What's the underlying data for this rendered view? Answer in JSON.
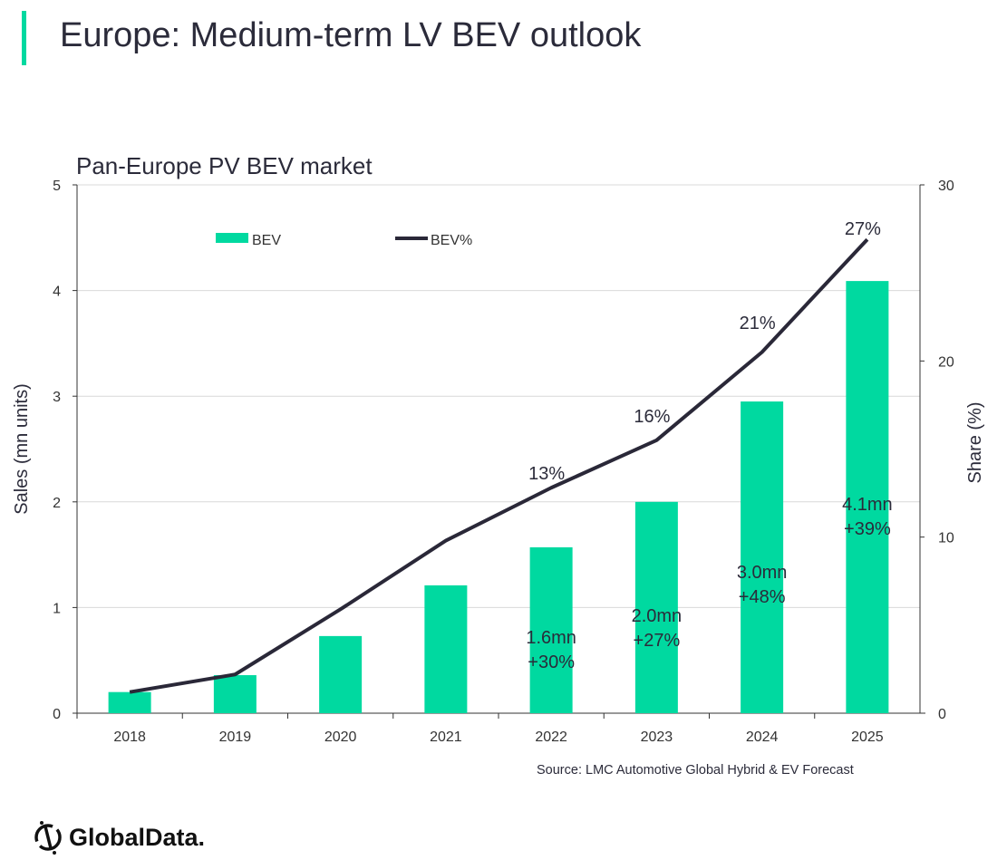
{
  "title": "Europe: Medium-term LV BEV outlook",
  "source": "Source: LMC Automotive Global Hybrid & EV Forecast",
  "logo": "GlobalData.",
  "colors": {
    "bar": "#00d9a0",
    "line": "#2a2838",
    "accent": "#00d9a0"
  },
  "chart_data": {
    "type": "bar+line",
    "title": "Pan-Europe PV BEV market",
    "categories": [
      "2018",
      "2019",
      "2020",
      "2021",
      "2022",
      "2023",
      "2024",
      "2025"
    ],
    "ylabel": "Sales (mn units)",
    "ylim": [
      0,
      5
    ],
    "yticks": [
      "0",
      "1",
      "2",
      "3",
      "4",
      "5"
    ],
    "y2label": "Share (%)",
    "y2lim": [
      0,
      30
    ],
    "y2ticks": [
      "0",
      "10",
      "20",
      "30"
    ],
    "grid": true,
    "legend": "top-left",
    "series": [
      {
        "name": "BEV",
        "type": "bar",
        "axis": "left",
        "values": [
          0.2,
          0.36,
          0.73,
          1.21,
          1.57,
          2.0,
          2.95,
          4.09
        ]
      },
      {
        "name": "BEV%",
        "type": "line",
        "axis": "right",
        "values": [
          1.2,
          2.2,
          5.9,
          9.8,
          12.8,
          15.5,
          20.5,
          26.9
        ]
      }
    ],
    "annotations": [
      {
        "category": "2022",
        "text": [
          "1.6mn",
          "+30%"
        ]
      },
      {
        "category": "2023",
        "text": [
          "2.0mn",
          "+27%"
        ]
      },
      {
        "category": "2024",
        "text": [
          "3.0mn",
          "+48%"
        ]
      },
      {
        "category": "2025",
        "text": [
          "4.1mn",
          "+39%"
        ]
      },
      {
        "category": "2022",
        "text": [
          "13%"
        ]
      },
      {
        "category": "2023",
        "text": [
          "16%"
        ]
      },
      {
        "category": "2024",
        "text": [
          "21%"
        ]
      },
      {
        "category": "2025",
        "text": [
          "27%"
        ]
      }
    ]
  }
}
